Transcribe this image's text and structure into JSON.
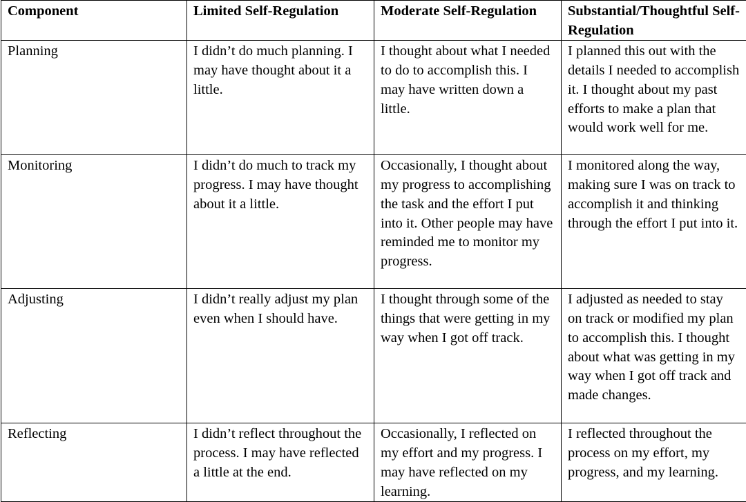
{
  "headers": [
    "Component",
    "Limited Self-Regulation",
    "Moderate Self-Regulation",
    "Substantial/Thoughtful Self-Regulation"
  ],
  "rows": [
    {
      "component": "Planning",
      "cells": [
        "I didn’t do much planning. I may have thought about it a little.",
        "I thought about what I needed to do to accomplish this. I may have written down a little.",
        "I planned this out with the details I needed to accomplish it. I thought about my past efforts to make a plan that would work well for me."
      ]
    },
    {
      "component": "Monitoring",
      "cells": [
        "I didn’t do much to track my progress. I may have thought about it a little.",
        "Occasionally, I thought about my progress to accomplishing the task and the effort I put into it. Other people may have reminded me to monitor my progress.",
        "I monitored along the way, making sure I was on track to accomplish it and thinking through the effort I put into it."
      ]
    },
    {
      "component": "Adjusting",
      "cells": [
        "I didn’t really adjust my plan even when I should have.",
        "I thought through some of the things that were getting in my way when I got off track.",
        "I adjusted as needed to stay on track or modified my plan to accomplish this. I thought about what was getting in my way when I got off track and made changes."
      ]
    },
    {
      "component": "Reflecting",
      "cells": [
        "I didn’t reflect throughout the process. I may have reflected a little at the end.",
        "Occasionally, I reflected on my effort and my progress. I may have reflected on my learning.",
        "I reflected throughout the process on my effort, my progress, and my learning."
      ]
    }
  ]
}
